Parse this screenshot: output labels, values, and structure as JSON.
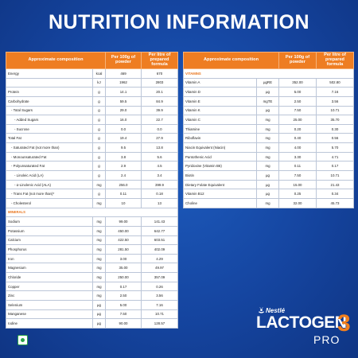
{
  "title": "NUTRITION INFORMATION",
  "headers": {
    "composition": "Approximate composition",
    "per100g": "Per 100g of powder",
    "perLitre": "Per litre of prepared formula"
  },
  "left_rows": [
    {
      "name": "Energy",
      "unit": "kcal",
      "per100g": "469",
      "perLitre": "670",
      "level": 0
    },
    {
      "name": "",
      "unit": "kJ",
      "per100g": "1962",
      "perLitre": "2803",
      "level": 0
    },
    {
      "name": "Protein",
      "unit": "g",
      "per100g": "14.1",
      "perLitre": "20.1",
      "level": 0
    },
    {
      "name": "Carbohydrate",
      "unit": "g",
      "per100g": "59.5",
      "perLitre": "84.9",
      "level": 0
    },
    {
      "name": "- Total Sugars",
      "unit": "g",
      "per100g": "29.0",
      "perLitre": "39.9",
      "level": 1
    },
    {
      "name": "- Added Sugars",
      "unit": "g",
      "per100g": "16.0",
      "perLitre": "22.7",
      "level": 2
    },
    {
      "name": "- Sucrose",
      "unit": "g",
      "per100g": "0.0",
      "perLitre": "0.0",
      "level": 2
    },
    {
      "name": "Total Fat",
      "unit": "g",
      "per100g": "19.4",
      "perLitre": "27.9",
      "level": 0
    },
    {
      "name": "- Saturated Fat (not more than)",
      "unit": "g",
      "per100g": "9.5",
      "perLitre": "13.8",
      "level": 1
    },
    {
      "name": "- Monounsaturated Fat",
      "unit": "g",
      "per100g": "3.8",
      "perLitre": "5.6",
      "level": 1
    },
    {
      "name": "- Polyunsaturated Fat",
      "unit": "g",
      "per100g": "2.9",
      "perLitre": "4.5",
      "level": 1
    },
    {
      "name": "- Linoleic Acid (LA)",
      "unit": "g",
      "per100g": "2.4",
      "perLitre": "3.4",
      "level": 2
    },
    {
      "name": "- α-Linolenic Acid (ALA)",
      "unit": "mg",
      "per100g": "256.0",
      "perLitre": "399.9",
      "level": 2
    },
    {
      "name": "- Trans Fat (not more than)*",
      "unit": "g",
      "per100g": "0.11",
      "perLitre": "0.18",
      "level": 1
    },
    {
      "name": "- Cholesterol",
      "unit": "mg",
      "per100g": "10",
      "perLitre": "13",
      "level": 1
    },
    {
      "name": "MINERALS",
      "unit": "",
      "per100g": "",
      "perLitre": "",
      "level": -1
    },
    {
      "name": "Sodium",
      "unit": "mg",
      "per100g": "99.00",
      "perLitre": "141.43",
      "level": 0
    },
    {
      "name": "Potassium",
      "unit": "mg",
      "per100g": "450.00",
      "perLitre": "642.77",
      "level": 0
    },
    {
      "name": "Calcium",
      "unit": "mg",
      "per100g": "422.50",
      "perLitre": "603.51",
      "level": 0
    },
    {
      "name": "Phosphorus",
      "unit": "mg",
      "per100g": "281.50",
      "perLitre": "402.09",
      "level": 0
    },
    {
      "name": "Iron",
      "unit": "mg",
      "per100g": "3.00",
      "perLitre": "4.29",
      "level": 0
    },
    {
      "name": "Magnesium",
      "unit": "mg",
      "per100g": "35.00",
      "perLitre": "49.97",
      "level": 0
    },
    {
      "name": "Chloride",
      "unit": "mg",
      "per100g": "250.00",
      "perLitre": "357.09",
      "level": 0
    },
    {
      "name": "Copper",
      "unit": "mg",
      "per100g": "0.17",
      "perLitre": "0.26",
      "level": 0
    },
    {
      "name": "Zinc",
      "unit": "mg",
      "per100g": "2.50",
      "perLitre": "3.56",
      "level": 0
    },
    {
      "name": "Selenium",
      "unit": "µg",
      "per100g": "5.00",
      "perLitre": "7.16",
      "level": 0
    },
    {
      "name": "Manganese",
      "unit": "µg",
      "per100g": "7.50",
      "perLitre": "10.71",
      "level": 0
    },
    {
      "name": "Iodine",
      "unit": "µg",
      "per100g": "90.00",
      "perLitre": "128.57",
      "level": 0
    }
  ],
  "right_rows": [
    {
      "name": "VITAMINS",
      "unit": "",
      "per100g": "",
      "perLitre": "",
      "level": -1
    },
    {
      "name": "Vitamin A",
      "unit": "µgRE",
      "per100g": "352.00",
      "perLitre": "502.80",
      "level": 0
    },
    {
      "name": "Vitamin D",
      "unit": "µg",
      "per100g": "5.00",
      "perLitre": "7.16",
      "level": 0
    },
    {
      "name": "Vitamin E",
      "unit": "mgTE",
      "per100g": "2.50",
      "perLitre": "3.56",
      "level": 0
    },
    {
      "name": "Vitamin K",
      "unit": "µg",
      "per100g": "7.50",
      "perLitre": "10.71",
      "level": 0
    },
    {
      "name": "Vitamin C",
      "unit": "mg",
      "per100g": "25.00",
      "perLitre": "35.70",
      "level": 0
    },
    {
      "name": "Thiamine",
      "unit": "mg",
      "per100g": "0.20",
      "perLitre": "0.30",
      "level": 0
    },
    {
      "name": "Riboflavin",
      "unit": "mg",
      "per100g": "0.40",
      "perLitre": "0.56",
      "level": 0
    },
    {
      "name": "Niacin Equivalent (Niacin)",
      "unit": "mg",
      "per100g": "4.00",
      "perLitre": "5.70",
      "level": 0
    },
    {
      "name": "Pantothenic Acid",
      "unit": "mg",
      "per100g": "3.30",
      "perLitre": "4.71",
      "level": 0
    },
    {
      "name": "Pyridoxine (Vitamin B6)",
      "unit": "mg",
      "per100g": "0.11",
      "perLitre": "0.17",
      "level": 0
    },
    {
      "name": "Biotin",
      "unit": "µg",
      "per100g": "7.50",
      "perLitre": "10.71",
      "level": 0
    },
    {
      "name": "Dietary Folate Equivalent",
      "unit": "µg",
      "per100g": "15.00",
      "perLitre": "21.43",
      "level": 0
    },
    {
      "name": "Vitamin B12",
      "unit": "µg",
      "per100g": "0.25",
      "perLitre": "0.34",
      "level": 0
    },
    {
      "name": "Choline",
      "unit": "mg",
      "per100g": "32.00",
      "perLitre": "45.73",
      "level": 0
    }
  ],
  "brand": {
    "maker": "Nestlé",
    "product": "LACTOGEN",
    "stage": "3",
    "variant": "PRO"
  },
  "colors": {
    "accent_orange": "#ee7d22",
    "background_blue": "#1545a0",
    "veg_green": "#2aa347"
  },
  "icons": {
    "veg": "vegetarian-mark-icon",
    "nest": "nestle-bird-nest-icon"
  }
}
